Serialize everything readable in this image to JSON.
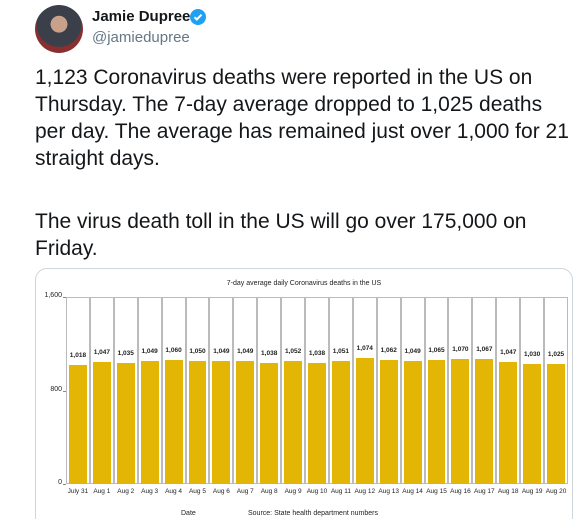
{
  "tweet": {
    "author": "Jamie Dupree",
    "handle": "@jamiedupree",
    "paragraphs": [
      "1,123 Coronavirus deaths were reported in the US on Thursday.  The 7-day average dropped to 1,025 deaths per day.  The average has remained just over 1,000 for 21 straight days.",
      "The virus death toll in the US will go over 175,000 on Friday."
    ]
  },
  "chart_data": {
    "type": "bar",
    "title": "7-day average daily Coronavirus deaths in the US",
    "categories": [
      "July 31",
      "Aug 1",
      "Aug 2",
      "Aug 3",
      "Aug 4",
      "Aug 5",
      "Aug 6",
      "Aug 7",
      "Aug 8",
      "Aug 9",
      "Aug 10",
      "Aug 11",
      "Aug 12",
      "Aug 13",
      "Aug 14",
      "Aug 15",
      "Aug 16",
      "Aug 17",
      "Aug 18",
      "Aug 19",
      "Aug 20"
    ],
    "values": [
      1018,
      1047,
      1035,
      1049,
      1060,
      1050,
      1049,
      1049,
      1038,
      1052,
      1038,
      1051,
      1074,
      1062,
      1049,
      1065,
      1070,
      1067,
      1047,
      1030,
      1025
    ],
    "value_labels": [
      "1,018",
      "1,047",
      "1,035",
      "1,049",
      "1,060",
      "1,050",
      "1,049",
      "1,049",
      "1,038",
      "1,052",
      "1,038",
      "1,051",
      "1,074",
      "1,062",
      "1,049",
      "1,065",
      "1,070",
      "1,067",
      "1,047",
      "1,030",
      "1,025"
    ],
    "color": "#e3b505",
    "ylim": [
      0,
      1600
    ],
    "yticks": [
      0,
      800,
      {
        "value": 1600,
        "label": "1,600"
      }
    ],
    "x_label": "Date",
    "source": "Source: State health department numbers"
  }
}
